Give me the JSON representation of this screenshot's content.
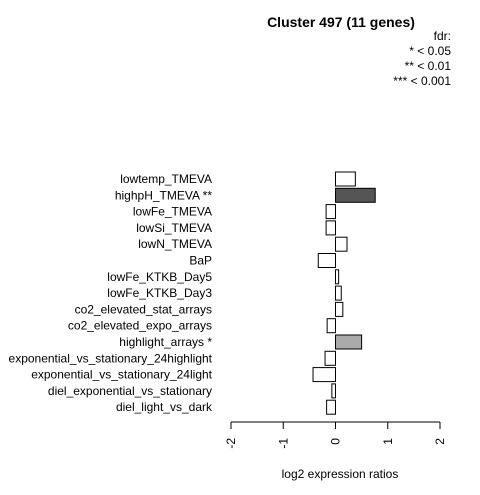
{
  "chart_data": {
    "type": "bar",
    "orientation": "horizontal",
    "title": "Cluster 497 (11 genes)",
    "xlabel": "log2 expression ratios",
    "xlim": [
      -2,
      2
    ],
    "xticks": [
      "-2",
      "-1",
      "0",
      "1",
      "2"
    ],
    "legend": {
      "title": "fdr:",
      "entries": [
        "* < 0.05",
        "** < 0.01",
        "*** < 0.001"
      ],
      "placement": "top-right"
    },
    "categories": [
      "lowtemp_TMEVA",
      "highpH_TMEVA **",
      "lowFe_TMEVA",
      "lowSi_TMEVA",
      "lowN_TMEVA",
      "BaP",
      "lowFe_KTKB_Day5",
      "lowFe_KTKB_Day3",
      "co2_elevated_stat_arrays",
      "co2_elevated_expo_arrays",
      "highlight_arrays *",
      "exponential_vs_stationary_24highlight",
      "exponential_vs_stationary_24light",
      "diel_exponential_vs_stationary",
      "diel_light_vs_dark"
    ],
    "values": [
      0.38,
      0.76,
      -0.18,
      -0.18,
      0.22,
      -0.33,
      0.06,
      0.11,
      0.14,
      -0.16,
      0.5,
      -0.2,
      -0.43,
      -0.07,
      -0.17
    ],
    "colors": [
      "#ffffff",
      "#555555",
      "#ffffff",
      "#ffffff",
      "#ffffff",
      "#ffffff",
      "#ffffff",
      "#ffffff",
      "#ffffff",
      "#ffffff",
      "#aaaaaa",
      "#ffffff",
      "#ffffff",
      "#ffffff",
      "#ffffff"
    ]
  }
}
